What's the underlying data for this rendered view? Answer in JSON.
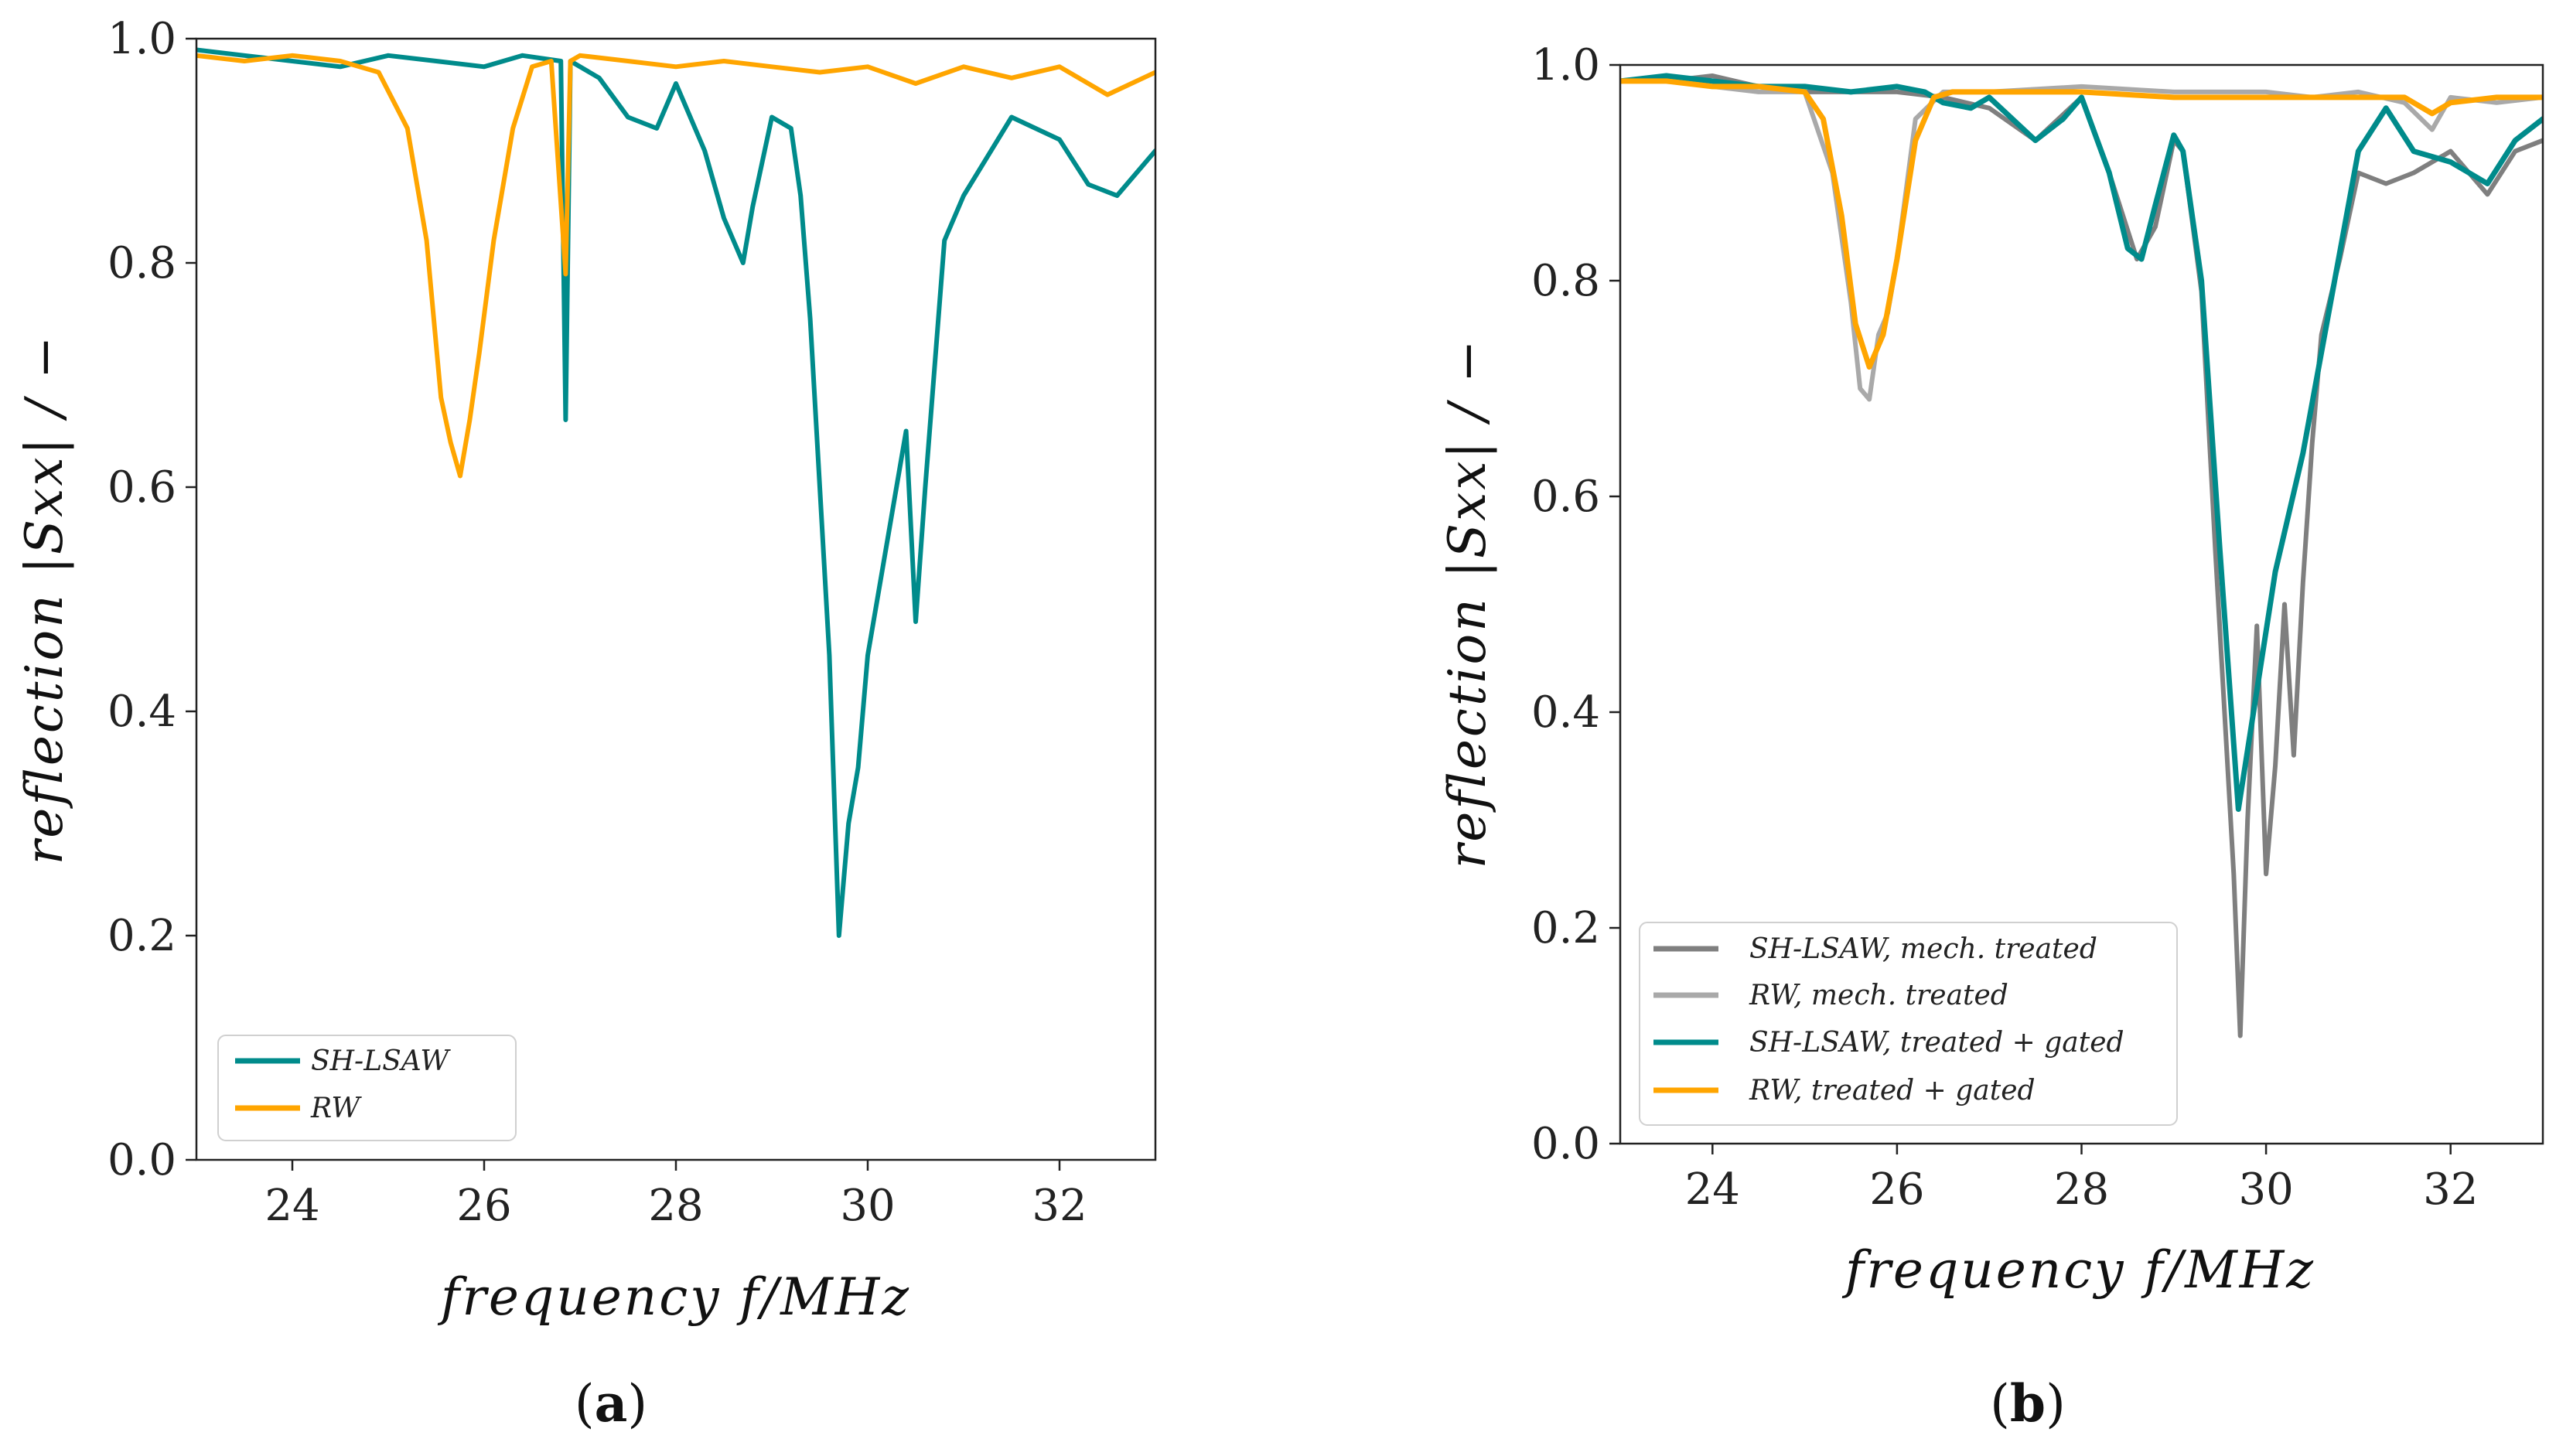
{
  "colors": {
    "sh_lsaw": "#008b8b",
    "rw": "#ffa500",
    "sh_lsaw_mech": "#7f7f7f",
    "rw_mech": "#a9a9a9"
  },
  "chart_data": [
    {
      "panel": "(a)",
      "panel_letter": "a",
      "type": "line",
      "xlabel": "frequency  f/MHz",
      "ylabel": "reflection  |Sxx| / −",
      "xlim": [
        23,
        33
      ],
      "ylim": [
        0.0,
        1.0
      ],
      "xticks": [
        "24",
        "26",
        "28",
        "30",
        "32"
      ],
      "yticks": [
        "0.0",
        "0.2",
        "0.4",
        "0.6",
        "0.8",
        "1.0"
      ],
      "legend_position": "lower-left",
      "series": [
        {
          "name": "SH-LSAW",
          "color": "#008b8b",
          "x": [
            23.0,
            23.5,
            24.0,
            24.5,
            25.0,
            25.5,
            26.0,
            26.4,
            26.8,
            26.85,
            26.9,
            27.2,
            27.5,
            27.8,
            28.0,
            28.3,
            28.5,
            28.7,
            28.8,
            29.0,
            29.2,
            29.3,
            29.4,
            29.5,
            29.6,
            29.7,
            29.8,
            29.9,
            30.0,
            30.2,
            30.4,
            30.5,
            30.6,
            30.8,
            31.0,
            31.5,
            32.0,
            32.3,
            32.6,
            33.0
          ],
          "values": [
            0.99,
            0.985,
            0.98,
            0.975,
            0.985,
            0.98,
            0.975,
            0.985,
            0.98,
            0.66,
            0.98,
            0.965,
            0.93,
            0.92,
            0.96,
            0.9,
            0.84,
            0.8,
            0.85,
            0.93,
            0.92,
            0.86,
            0.75,
            0.6,
            0.45,
            0.2,
            0.3,
            0.35,
            0.45,
            0.55,
            0.65,
            0.48,
            0.6,
            0.82,
            0.86,
            0.93,
            0.91,
            0.87,
            0.86,
            0.9
          ]
        },
        {
          "name": "RW",
          "color": "#ffa500",
          "x": [
            23.0,
            23.5,
            24.0,
            24.5,
            24.9,
            25.2,
            25.4,
            25.55,
            25.65,
            25.75,
            25.85,
            25.95,
            26.1,
            26.3,
            26.5,
            26.7,
            26.85,
            26.9,
            27.0,
            27.5,
            28.0,
            28.5,
            29.0,
            29.5,
            30.0,
            30.5,
            31.0,
            31.5,
            32.0,
            32.5,
            33.0
          ],
          "values": [
            0.985,
            0.98,
            0.985,
            0.98,
            0.97,
            0.92,
            0.82,
            0.68,
            0.64,
            0.61,
            0.66,
            0.72,
            0.82,
            0.92,
            0.975,
            0.98,
            0.79,
            0.98,
            0.985,
            0.98,
            0.975,
            0.98,
            0.975,
            0.97,
            0.975,
            0.96,
            0.975,
            0.965,
            0.975,
            0.95,
            0.97
          ]
        }
      ]
    },
    {
      "panel": "(b)",
      "panel_letter": "b",
      "type": "line",
      "xlabel": "frequency  f/MHz",
      "ylabel": "reflection  |Sxx| / −",
      "xlim": [
        23,
        33
      ],
      "ylim": [
        0.0,
        1.0
      ],
      "xticks": [
        "24",
        "26",
        "28",
        "30",
        "32"
      ],
      "yticks": [
        "0.0",
        "0.2",
        "0.4",
        "0.6",
        "0.8",
        "1.0"
      ],
      "legend_position": "lower-left",
      "series": [
        {
          "name": "SH-LSAW, mech. treated",
          "color": "#7f7f7f",
          "x": [
            23.0,
            23.5,
            24.0,
            24.5,
            25.0,
            25.5,
            26.0,
            26.5,
            27.0,
            27.5,
            28.0,
            28.3,
            28.6,
            28.8,
            29.0,
            29.1,
            29.3,
            29.45,
            29.55,
            29.65,
            29.72,
            29.8,
            29.9,
            30.0,
            30.1,
            30.2,
            30.3,
            30.4,
            30.5,
            30.6,
            30.8,
            31.0,
            31.3,
            31.6,
            32.0,
            32.4,
            32.7,
            33.0
          ],
          "values": [
            0.985,
            0.985,
            0.99,
            0.98,
            0.975,
            0.975,
            0.975,
            0.97,
            0.96,
            0.93,
            0.97,
            0.9,
            0.82,
            0.85,
            0.93,
            0.92,
            0.79,
            0.55,
            0.4,
            0.25,
            0.1,
            0.3,
            0.48,
            0.25,
            0.35,
            0.5,
            0.36,
            0.52,
            0.65,
            0.75,
            0.82,
            0.9,
            0.89,
            0.9,
            0.92,
            0.88,
            0.92,
            0.93
          ]
        },
        {
          "name": "RW, mech. treated",
          "color": "#a9a9a9",
          "x": [
            23.0,
            23.5,
            24.0,
            24.5,
            25.0,
            25.3,
            25.5,
            25.6,
            25.7,
            25.8,
            25.9,
            26.0,
            26.2,
            26.5,
            27.0,
            28.0,
            29.0,
            30.0,
            30.5,
            31.0,
            31.5,
            31.8,
            32.0,
            32.5,
            33.0
          ],
          "values": [
            0.985,
            0.99,
            0.98,
            0.975,
            0.975,
            0.9,
            0.78,
            0.7,
            0.69,
            0.75,
            0.77,
            0.82,
            0.95,
            0.975,
            0.975,
            0.98,
            0.975,
            0.975,
            0.97,
            0.975,
            0.965,
            0.94,
            0.97,
            0.965,
            0.97
          ]
        },
        {
          "name": "SH-LSAW, treated + gated",
          "color": "#008b8b",
          "x": [
            23.0,
            23.5,
            24.0,
            24.5,
            25.0,
            25.5,
            26.0,
            26.3,
            26.5,
            26.8,
            27.0,
            27.5,
            27.8,
            28.0,
            28.3,
            28.5,
            28.65,
            28.8,
            29.0,
            29.1,
            29.3,
            29.5,
            29.7,
            29.9,
            30.1,
            30.4,
            30.7,
            31.0,
            31.3,
            31.6,
            32.0,
            32.4,
            32.7,
            33.0
          ],
          "values": [
            0.985,
            0.99,
            0.985,
            0.98,
            0.98,
            0.975,
            0.98,
            0.975,
            0.965,
            0.96,
            0.97,
            0.93,
            0.95,
            0.97,
            0.9,
            0.83,
            0.82,
            0.87,
            0.935,
            0.92,
            0.8,
            0.55,
            0.31,
            0.42,
            0.53,
            0.64,
            0.78,
            0.92,
            0.96,
            0.92,
            0.91,
            0.89,
            0.93,
            0.95
          ]
        },
        {
          "name": "RW, treated + gated",
          "color": "#ffa500",
          "x": [
            23.0,
            23.5,
            24.0,
            24.5,
            25.0,
            25.2,
            25.4,
            25.55,
            25.7,
            25.85,
            26.0,
            26.2,
            26.4,
            26.6,
            27.0,
            28.0,
            29.0,
            30.0,
            30.5,
            31.0,
            31.5,
            31.8,
            32.0,
            32.5,
            33.0
          ],
          "values": [
            0.985,
            0.985,
            0.98,
            0.98,
            0.975,
            0.95,
            0.86,
            0.76,
            0.72,
            0.75,
            0.82,
            0.93,
            0.97,
            0.975,
            0.975,
            0.975,
            0.97,
            0.97,
            0.97,
            0.97,
            0.97,
            0.955,
            0.965,
            0.97,
            0.97
          ]
        }
      ]
    }
  ]
}
